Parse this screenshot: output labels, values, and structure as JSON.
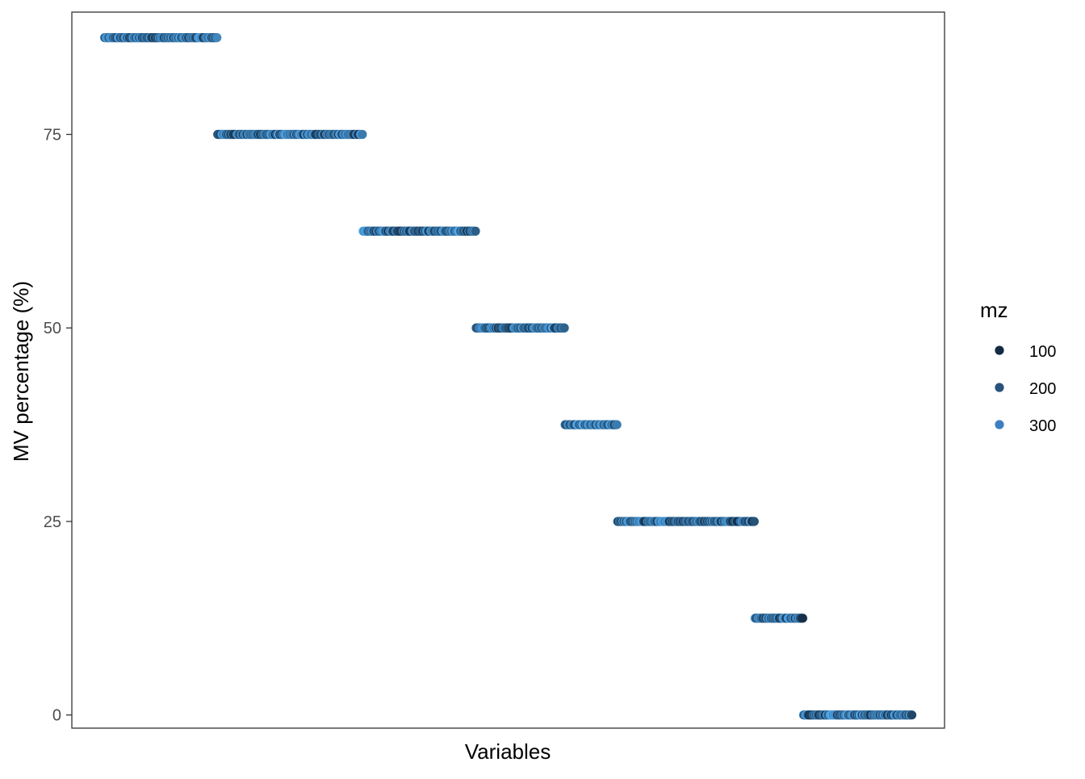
{
  "chart_data": {
    "type": "scatter",
    "xlabel": "Variables",
    "ylabel": "MV percentage (%)",
    "ylim": [
      -1.7,
      90.8
    ],
    "yticks": [
      0,
      25,
      50,
      75
    ],
    "x_ticks_shown": false,
    "grid": false,
    "panel_border": true,
    "legend": {
      "title": "mz",
      "position": "right",
      "entries": [
        {
          "label": "100",
          "color": "#132b43"
        },
        {
          "label": "200",
          "color": "#28527a"
        },
        {
          "label": "300",
          "color": "#3c7fc2"
        }
      ]
    },
    "color_scale": {
      "low": "#132b43",
      "high": "#56b1f7",
      "domain": [
        50,
        350
      ]
    },
    "groups": [
      {
        "y": 87.5,
        "x_start": 1,
        "x_end": 140
      },
      {
        "y": 75,
        "x_start": 141,
        "x_end": 320
      },
      {
        "y": 62.5,
        "x_start": 321,
        "x_end": 460
      },
      {
        "y": 50,
        "x_start": 461,
        "x_end": 570
      },
      {
        "y": 37.5,
        "x_start": 571,
        "x_end": 635
      },
      {
        "y": 25,
        "x_start": 636,
        "x_end": 805
      },
      {
        "y": 12.5,
        "x_start": 806,
        "x_end": 865
      },
      {
        "y": 0,
        "x_start": 866,
        "x_end": 1000
      }
    ],
    "n_variables": 1000
  }
}
